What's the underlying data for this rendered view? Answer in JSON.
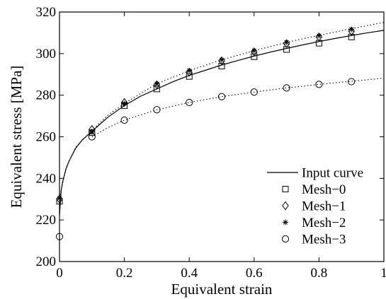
{
  "chart_data": {
    "type": "line",
    "title": "",
    "xlabel": "Equivalent strain",
    "ylabel": "Equivalent stress [MPa]",
    "xlim": [
      0,
      1
    ],
    "ylim": [
      200,
      320
    ],
    "xticks": [
      "0",
      "0.2",
      "0.4",
      "0.6",
      "0.8",
      "1"
    ],
    "yticks": [
      "200",
      "220",
      "240",
      "260",
      "280",
      "300",
      "320"
    ],
    "grid": false,
    "legend_position": "lower-right",
    "input_curve": {
      "name": "Input curve",
      "style": "solid",
      "color": "#000000",
      "x": [
        0,
        0.005,
        0.01,
        0.02,
        0.03,
        0.05,
        0.07,
        0.1,
        0.15,
        0.2,
        0.25,
        0.3,
        0.35,
        0.4,
        0.45,
        0.5,
        0.55,
        0.6,
        0.65,
        0.7,
        0.75,
        0.8,
        0.85,
        0.9,
        0.95,
        1.0
      ],
      "y": [
        222.0,
        234.0,
        238.5,
        244.5,
        248.5,
        254.5,
        258.5,
        262.6,
        269.5,
        275.0,
        279.5,
        283.0,
        286.5,
        289.5,
        292.0,
        294.5,
        296.7,
        298.8,
        300.7,
        302.5,
        304.2,
        305.8,
        307.3,
        308.7,
        310.0,
        311.2
      ]
    },
    "series": [
      {
        "name": "Mesh−0",
        "marker": "square",
        "x": [
          0,
          0.1,
          0.2,
          0.3,
          0.4,
          0.5,
          0.6,
          0.7,
          0.8,
          0.9
        ],
        "y": [
          229,
          262,
          275,
          283,
          289,
          294,
          298.5,
          302,
          305,
          308
        ]
      },
      {
        "name": "Mesh−1",
        "marker": "diamond",
        "x": [
          0,
          0.1,
          0.2,
          0.3,
          0.4,
          0.5,
          0.6,
          0.7,
          0.8,
          0.9
        ],
        "y": [
          230,
          263.5,
          276.5,
          285,
          291,
          296.5,
          300.8,
          304.8,
          308,
          310.8
        ]
      },
      {
        "name": "Mesh−2",
        "marker": "star",
        "x": [
          0,
          0.1,
          0.2,
          0.3,
          0.4,
          0.5,
          0.6,
          0.7,
          0.8,
          0.9
        ],
        "y": [
          230.5,
          262.5,
          276,
          285.5,
          291.8,
          297,
          301.4,
          305.4,
          308.6,
          311.6
        ]
      },
      {
        "name": "Mesh−3",
        "marker": "circle",
        "x": [
          0,
          0.1,
          0.2,
          0.3,
          0.4,
          0.5,
          0.6,
          0.7,
          0.8,
          0.9
        ],
        "y": [
          212,
          260,
          268,
          273,
          276.5,
          279.3,
          281.5,
          283.5,
          285.2,
          286.5
        ]
      }
    ],
    "dotted_fits": [
      {
        "for": "Mesh−2",
        "x": [
          0,
          0.02,
          0.05,
          0.1,
          0.15,
          0.2,
          0.3,
          0.4,
          0.5,
          0.6,
          0.7,
          0.8,
          0.9,
          1.0
        ],
        "y": [
          230.5,
          245,
          255,
          263,
          270.5,
          276,
          285.5,
          291.8,
          297,
          301.4,
          305.4,
          308.8,
          312,
          315
        ]
      },
      {
        "for": "Mesh−3",
        "x": [
          0.1,
          0.15,
          0.2,
          0.3,
          0.4,
          0.5,
          0.6,
          0.7,
          0.8,
          0.9,
          1.0
        ],
        "y": [
          260,
          264.5,
          268,
          273,
          276.5,
          279.3,
          281.5,
          283.5,
          285.2,
          286.7,
          288.2
        ]
      }
    ]
  }
}
